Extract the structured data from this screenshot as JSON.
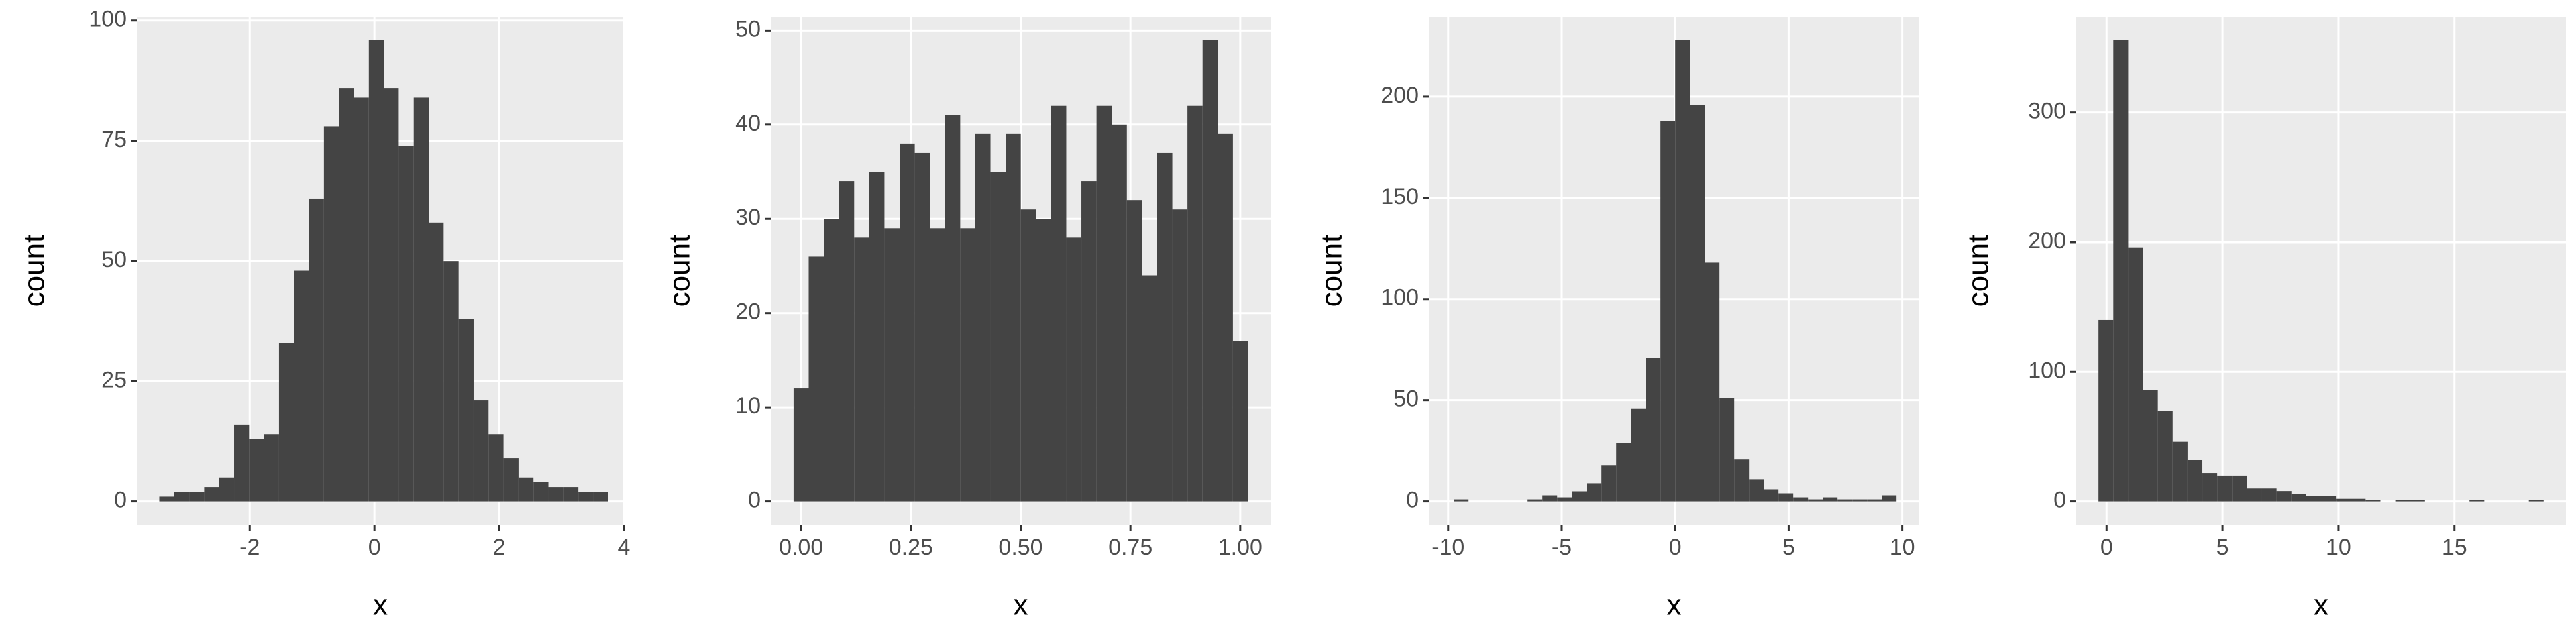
{
  "chart_data": [
    {
      "type": "histogram",
      "x_label": "x",
      "y_label": "count",
      "color": "#444444",
      "grid": true,
      "bins": [
        -3.45,
        -3.21,
        -2.97,
        -2.73,
        -2.49,
        -2.25,
        -2.01,
        -1.77,
        -1.53,
        -1.29,
        -1.05,
        -0.81,
        -0.57,
        -0.33,
        -0.09,
        0.15,
        0.39,
        0.63,
        0.87,
        1.11,
        1.35,
        1.59,
        1.83,
        2.07,
        2.31,
        2.55,
        2.79,
        3.03,
        3.27,
        3.51,
        3.75
      ],
      "values": [
        1,
        2,
        2,
        3,
        5,
        16,
        13,
        14,
        33,
        48,
        63,
        78,
        86,
        84,
        96,
        86,
        74,
        84,
        58,
        50,
        38,
        21,
        14,
        9,
        5,
        4,
        3,
        3,
        2,
        2
      ],
      "xlim": [
        -3.81,
        4.0
      ],
      "xticks": [
        -2,
        0,
        2,
        4
      ],
      "ylim": [
        -4.8,
        100.8
      ],
      "yticks": [
        0,
        25,
        50,
        75,
        100
      ]
    },
    {
      "type": "histogram",
      "x_label": "x",
      "y_label": "count",
      "color": "#444444",
      "grid": true,
      "bins": [
        -0.0172,
        0.0173,
        0.0518,
        0.0863,
        0.1208,
        0.1553,
        0.1898,
        0.2243,
        0.2588,
        0.2933,
        0.3278,
        0.3623,
        0.3968,
        0.4313,
        0.4658,
        0.5003,
        0.5348,
        0.5693,
        0.6038,
        0.6383,
        0.6728,
        0.7073,
        0.7418,
        0.7763,
        0.8108,
        0.8453,
        0.8798,
        0.9143,
        0.9488,
        0.9833,
        1.0178
      ],
      "values": [
        12,
        26,
        30,
        34,
        28,
        35,
        29,
        38,
        37,
        29,
        41,
        29,
        39,
        35,
        39,
        31,
        30,
        42,
        28,
        34,
        42,
        40,
        32,
        24,
        37,
        31,
        42,
        49,
        39,
        17
      ],
      "xlim": [
        -0.069,
        1.069
      ],
      "xticks": [
        {
          "value": 0,
          "label": "0.00"
        },
        {
          "value": 0.25,
          "label": "0.25"
        },
        {
          "value": 0.5,
          "label": "0.50"
        },
        {
          "value": 0.75,
          "label": "0.75"
        },
        {
          "value": 1,
          "label": "1.00"
        }
      ],
      "ylim": [
        -2.45,
        51.45
      ],
      "yticks": [
        0,
        10,
        20,
        30,
        40,
        50
      ]
    },
    {
      "type": "histogram",
      "x_label": "x",
      "y_label": "count",
      "color": "#444444",
      "grid": true,
      "bins": [
        -9.75,
        -9.1,
        -8.45,
        -7.8,
        -7.15,
        -6.5,
        -5.85,
        -5.2,
        -4.55,
        -3.9,
        -3.25,
        -2.6,
        -1.95,
        -1.3,
        -0.65,
        0,
        0.65,
        1.3,
        1.95,
        2.6,
        3.25,
        3.9,
        4.55,
        5.2,
        5.85,
        6.5,
        7.15,
        7.8,
        8.45,
        9.1,
        9.75
      ],
      "values": [
        1,
        0,
        0,
        0,
        0,
        1,
        3,
        2,
        5,
        9,
        18,
        29,
        46,
        71,
        188,
        228,
        196,
        118,
        51,
        21,
        11,
        6,
        4,
        2,
        1,
        2,
        1,
        1,
        1,
        3
      ],
      "xlim": [
        -10.85,
        10.75
      ],
      "xticks": [
        -10,
        -5,
        0,
        5,
        10
      ],
      "ylim": [
        -11.4,
        239.4
      ],
      "yticks": [
        0,
        50,
        100,
        150,
        200
      ]
    },
    {
      "type": "histogram",
      "x_label": "x",
      "y_label": "count",
      "color": "#444444",
      "grid": true,
      "bins": [
        -0.35,
        0.29,
        0.93,
        1.57,
        2.21,
        2.85,
        3.49,
        4.13,
        4.77,
        5.41,
        6.05,
        6.69,
        7.33,
        7.97,
        8.61,
        9.25,
        9.89,
        10.53,
        11.17,
        11.81,
        12.45,
        13.09,
        13.73,
        14.37,
        15.01,
        15.65,
        16.29,
        16.93,
        17.57,
        18.21,
        18.85
      ],
      "values": [
        140,
        356,
        196,
        86,
        70,
        46,
        32,
        22,
        20,
        20,
        10,
        10,
        8,
        6,
        4,
        4,
        2,
        2,
        1,
        0,
        1,
        1,
        0,
        0,
        0,
        1,
        0,
        0,
        0,
        1
      ],
      "xlim": [
        -1.31,
        19.81
      ],
      "xticks": [
        0,
        5,
        10,
        15
      ],
      "ylim": [
        -17.8,
        373.8
      ],
      "yticks": [
        0,
        100,
        200,
        300
      ]
    }
  ]
}
